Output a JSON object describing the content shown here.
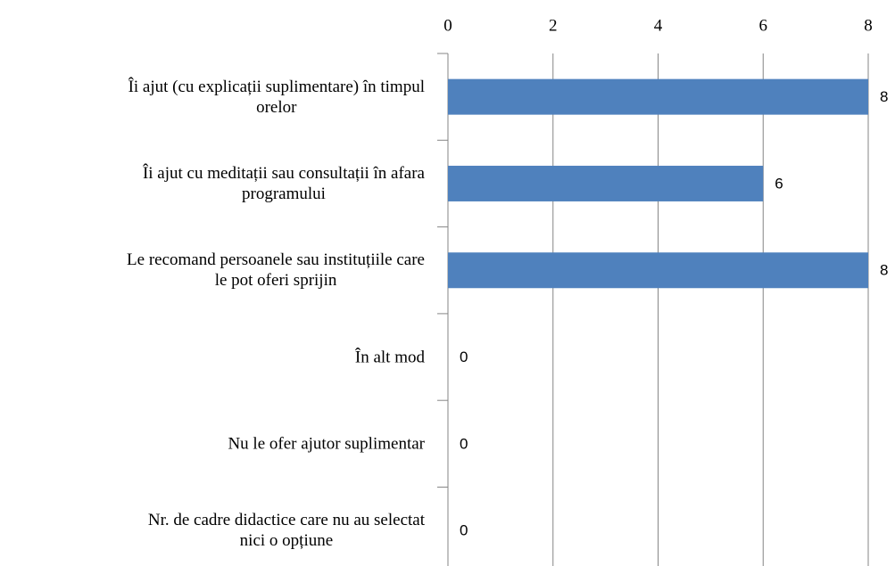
{
  "chart_data": {
    "type": "bar",
    "orientation": "horizontal",
    "categories": [
      "Îi ajut (cu explicații suplimentare) în timpul\norelor",
      "Îi ajut cu meditații sau consultații în afara\nprogramului",
      "Le recomand persoanele sau instituțiile care\nle pot oferi sprijin",
      "În alt mod",
      "Nu le ofer ajutor suplimentar",
      "Nr. de cadre didactice care nu au selectat\nnici o opțiune"
    ],
    "values": [
      8,
      6,
      8,
      0,
      0,
      0
    ],
    "color": "#4f81bd",
    "xlim": [
      0,
      8
    ],
    "xticks": [
      0,
      2,
      4,
      6,
      8
    ],
    "grid": true
  }
}
